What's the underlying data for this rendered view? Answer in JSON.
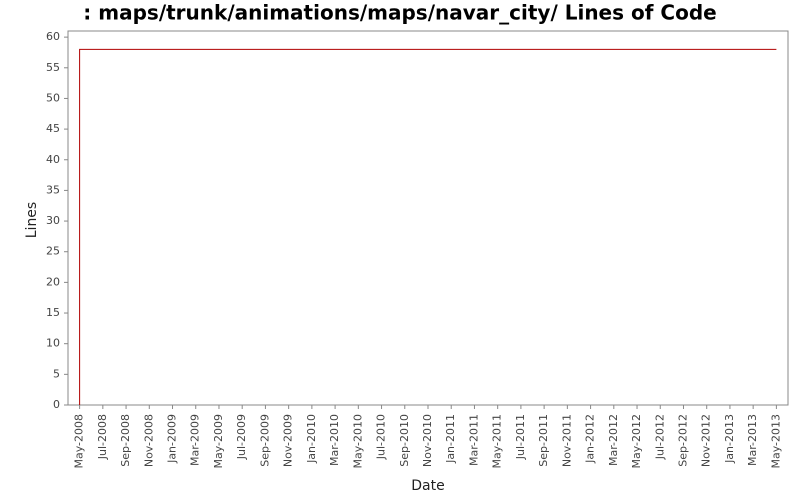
{
  "chart_data": {
    "type": "line",
    "title": ": maps/trunk/animations/maps/navar_city/ Lines of Code",
    "x_label": "Date",
    "y_label": "Lines",
    "x": [
      "2008-05",
      "2008-05",
      "2013-05"
    ],
    "values": [
      0,
      58,
      58
    ],
    "color": "#b00000",
    "xlim": [
      "2008-04",
      "2013-06"
    ],
    "xticks": [
      {
        "value": "2008-05",
        "label": "May-2008"
      },
      {
        "value": "2008-07",
        "label": "Jul-2008"
      },
      {
        "value": "2008-09",
        "label": "Sep-2008"
      },
      {
        "value": "2008-11",
        "label": "Nov-2008"
      },
      {
        "value": "2009-01",
        "label": "Jan-2009"
      },
      {
        "value": "2009-03",
        "label": "Mar-2009"
      },
      {
        "value": "2009-05",
        "label": "May-2009"
      },
      {
        "value": "2009-07",
        "label": "Jul-2009"
      },
      {
        "value": "2009-09",
        "label": "Sep-2009"
      },
      {
        "value": "2009-11",
        "label": "Nov-2009"
      },
      {
        "value": "2010-01",
        "label": "Jan-2010"
      },
      {
        "value": "2010-03",
        "label": "Mar-2010"
      },
      {
        "value": "2010-05",
        "label": "May-2010"
      },
      {
        "value": "2010-07",
        "label": "Jul-2010"
      },
      {
        "value": "2010-09",
        "label": "Sep-2010"
      },
      {
        "value": "2010-11",
        "label": "Nov-2010"
      },
      {
        "value": "2011-01",
        "label": "Jan-2011"
      },
      {
        "value": "2011-03",
        "label": "Mar-2011"
      },
      {
        "value": "2011-05",
        "label": "May-2011"
      },
      {
        "value": "2011-07",
        "label": "Jul-2011"
      },
      {
        "value": "2011-09",
        "label": "Sep-2011"
      },
      {
        "value": "2011-11",
        "label": "Nov-2011"
      },
      {
        "value": "2012-01",
        "label": "Jan-2012"
      },
      {
        "value": "2012-03",
        "label": "Mar-2012"
      },
      {
        "value": "2012-05",
        "label": "May-2012"
      },
      {
        "value": "2012-07",
        "label": "Jul-2012"
      },
      {
        "value": "2012-09",
        "label": "Sep-2012"
      },
      {
        "value": "2012-11",
        "label": "Nov-2012"
      },
      {
        "value": "2013-01",
        "label": "Jan-2013"
      },
      {
        "value": "2013-03",
        "label": "Mar-2013"
      },
      {
        "value": "2013-05",
        "label": "May-2013"
      }
    ],
    "ylim": [
      0,
      61
    ],
    "yticks": [
      0,
      5,
      10,
      15,
      20,
      25,
      30,
      35,
      40,
      45,
      50,
      55,
      60
    ],
    "grid": false
  }
}
